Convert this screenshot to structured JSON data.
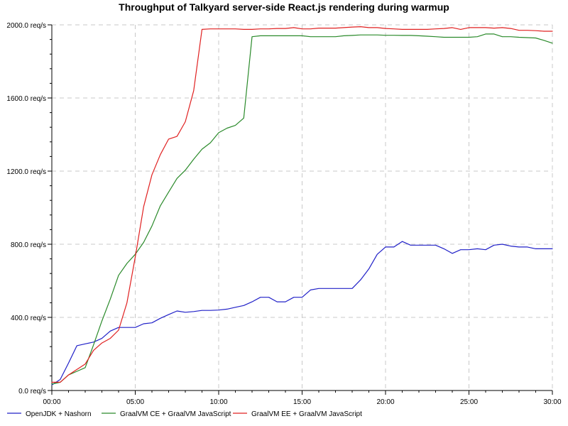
{
  "chart_data": {
    "type": "line",
    "title": "Throughput of Talkyard server-side React.js rendering during warmup",
    "xlabel": "",
    "ylabel": "",
    "xlim": [
      0,
      30
    ],
    "ylim": [
      0,
      2000
    ],
    "x_ticks": [
      0,
      5,
      10,
      15,
      20,
      25,
      30
    ],
    "x_tick_labels": [
      "00:00",
      "05:00",
      "10:00",
      "15:00",
      "20:00",
      "25:00",
      "30:00"
    ],
    "y_ticks": [
      0,
      400,
      800,
      1200,
      1600,
      2000
    ],
    "y_tick_labels": [
      "0.0 req/s",
      "400.0 req/s",
      "800.0 req/s",
      "1200.0 req/s",
      "1600.0 req/s",
      "2000.0 req/s"
    ],
    "grid": true,
    "legend_position": "bottom",
    "series": [
      {
        "name": "OpenJDK + Nashorn",
        "color": "#2020c8",
        "x": [
          0,
          0.5,
          1.0,
          1.5,
          2.0,
          2.5,
          3.0,
          3.5,
          4.0,
          4.5,
          5.0,
          5.5,
          6.0,
          6.5,
          7.0,
          7.5,
          8.0,
          8.5,
          9.0,
          9.5,
          10.0,
          10.5,
          11.0,
          11.5,
          12.0,
          12.5,
          13.0,
          13.5,
          14.0,
          14.5,
          15.0,
          15.5,
          16.0,
          16.5,
          17.0,
          17.5,
          18.0,
          18.5,
          19.0,
          19.5,
          20.0,
          20.5,
          21.0,
          21.5,
          22.0,
          22.5,
          23.0,
          23.5,
          24.0,
          24.5,
          25.0,
          25.5,
          26.0,
          26.5,
          27.0,
          27.5,
          28.0,
          28.5,
          29.0,
          29.5,
          30.0
        ],
        "values": [
          30,
          60,
          150,
          245,
          255,
          265,
          285,
          325,
          345,
          345,
          345,
          365,
          370,
          395,
          415,
          435,
          428,
          432,
          438,
          438,
          440,
          445,
          455,
          465,
          485,
          510,
          510,
          485,
          485,
          510,
          510,
          550,
          558,
          558,
          558,
          558,
          558,
          605,
          665,
          745,
          785,
          785,
          815,
          795,
          795,
          795,
          795,
          775,
          750,
          770,
          770,
          775,
          770,
          795,
          800,
          790,
          785,
          785,
          775,
          775,
          775
        ]
      },
      {
        "name": "GraalVM CE + GraalVM JavaScript",
        "color": "#2a8a2a",
        "x": [
          0,
          0.5,
          1.0,
          1.5,
          2.0,
          2.5,
          3.0,
          3.5,
          4.0,
          4.5,
          5.0,
          5.5,
          6.0,
          6.5,
          7.0,
          7.5,
          8.0,
          8.5,
          9.0,
          9.5,
          10.0,
          10.5,
          11.0,
          11.5,
          12.0,
          12.5,
          13.0,
          13.5,
          14.0,
          14.5,
          15.0,
          15.5,
          16.0,
          16.5,
          17.0,
          17.5,
          18.0,
          18.5,
          19.0,
          19.5,
          20.0,
          20.5,
          21.0,
          21.5,
          22.0,
          22.5,
          23.0,
          23.5,
          24.0,
          24.5,
          25.0,
          25.5,
          26.0,
          26.5,
          27.0,
          27.5,
          28.0,
          28.5,
          29.0,
          29.5,
          30.0
        ],
        "values": [
          35,
          45,
          85,
          105,
          125,
          250,
          380,
          500,
          630,
          695,
          745,
          810,
          900,
          1010,
          1085,
          1160,
          1205,
          1265,
          1320,
          1355,
          1410,
          1435,
          1450,
          1490,
          1935,
          1940,
          1940,
          1940,
          1940,
          1940,
          1940,
          1935,
          1935,
          1935,
          1935,
          1940,
          1942,
          1945,
          1945,
          1945,
          1943,
          1943,
          1942,
          1942,
          1940,
          1938,
          1935,
          1932,
          1932,
          1932,
          1932,
          1935,
          1950,
          1950,
          1935,
          1935,
          1932,
          1930,
          1928,
          1915,
          1900
        ]
      },
      {
        "name": "GraalVM EE + GraalVM JavaScript",
        "color": "#e02020",
        "x": [
          0,
          0.5,
          1.0,
          1.5,
          2.0,
          2.5,
          3.0,
          3.5,
          4.0,
          4.5,
          5.0,
          5.5,
          6.0,
          6.5,
          7.0,
          7.5,
          8.0,
          8.5,
          9.0,
          9.5,
          10.0,
          10.5,
          11.0,
          11.5,
          12.0,
          12.5,
          13.0,
          13.5,
          14.0,
          14.5,
          15.0,
          15.5,
          16.0,
          16.5,
          17.0,
          17.5,
          18.0,
          18.5,
          19.0,
          19.5,
          20.0,
          20.5,
          21.0,
          21.5,
          22.0,
          22.5,
          23.0,
          23.5,
          24.0,
          24.5,
          25.0,
          25.5,
          26.0,
          26.5,
          27.0,
          27.5,
          28.0,
          28.5,
          29.0,
          29.5,
          30.0
        ],
        "values": [
          45,
          45,
          85,
          115,
          145,
          220,
          260,
          285,
          330,
          480,
          730,
          1005,
          1180,
          1290,
          1375,
          1390,
          1470,
          1640,
          1975,
          1978,
          1978,
          1978,
          1978,
          1975,
          1975,
          1978,
          1978,
          1980,
          1980,
          1985,
          1978,
          1978,
          1982,
          1982,
          1982,
          1985,
          1988,
          1990,
          1985,
          1985,
          1980,
          1978,
          1975,
          1975,
          1975,
          1975,
          1978,
          1980,
          1985,
          1975,
          1985,
          1985,
          1985,
          1982,
          1985,
          1980,
          1970,
          1970,
          1968,
          1965,
          1965
        ]
      }
    ]
  }
}
